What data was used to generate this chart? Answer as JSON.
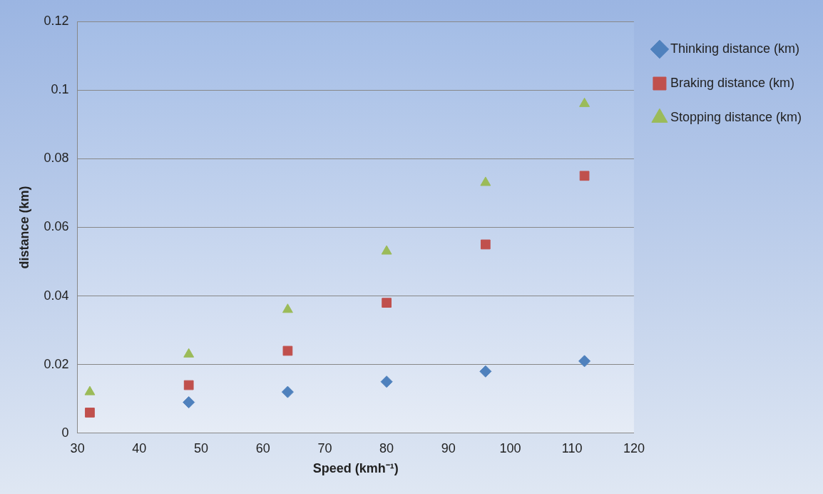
{
  "chart_data": {
    "type": "scatter",
    "xlabel": "Speed (kmh⁻¹)",
    "ylabel": "distance (km)",
    "x": [
      32,
      48,
      64,
      80,
      96,
      112
    ],
    "series": [
      {
        "name": "Thinking distance (km)",
        "color": "#4f81bd",
        "marker": "diamond",
        "values": [
          null,
          0.009,
          0.012,
          0.015,
          0.018,
          0.021
        ]
      },
      {
        "name": "Braking distance (km)",
        "color": "#c0504d",
        "marker": "square",
        "values": [
          0.006,
          0.014,
          0.024,
          0.038,
          0.055,
          0.075
        ]
      },
      {
        "name": "Stopping distance (km)",
        "color": "#9bbb59",
        "marker": "triangle",
        "values": [
          0.012,
          0.023,
          0.036,
          0.053,
          0.073,
          0.096
        ]
      }
    ],
    "xlim": [
      30,
      120
    ],
    "xticks": [
      30,
      40,
      50,
      60,
      70,
      80,
      90,
      100,
      110,
      120
    ],
    "ylim": [
      0,
      0.12
    ],
    "yticks": [
      0,
      0.02,
      0.04,
      0.06,
      0.08,
      0.1,
      0.12
    ],
    "grid": "y",
    "legend": "right"
  }
}
